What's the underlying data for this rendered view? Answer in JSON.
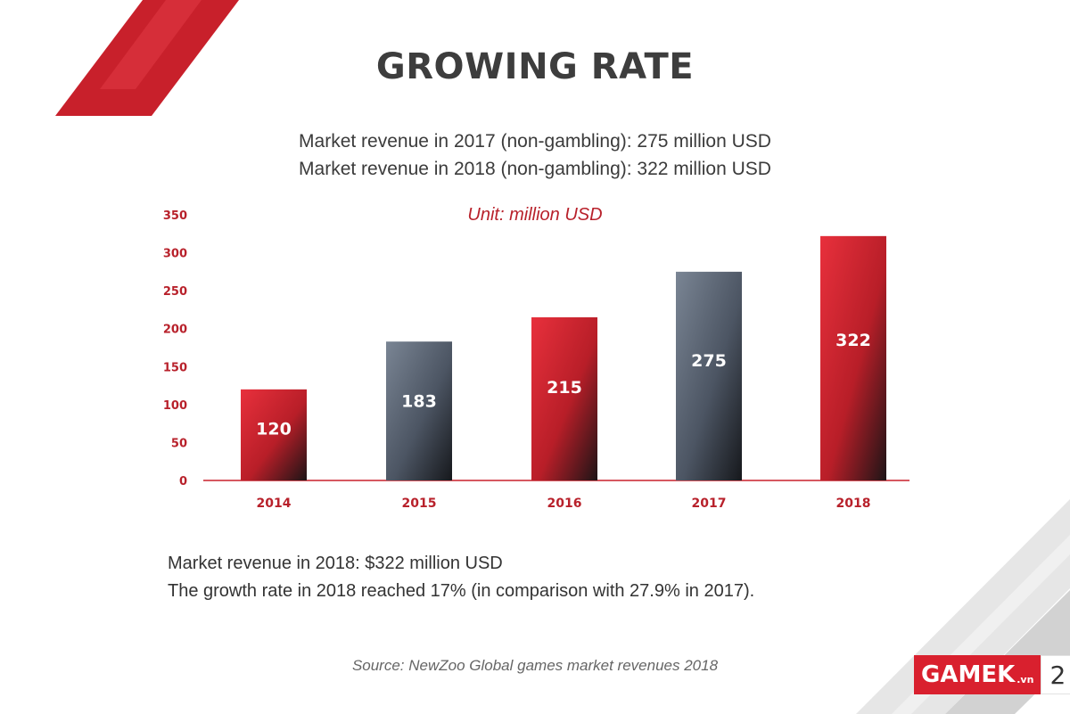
{
  "slide": {
    "title": "GROWING RATE",
    "subtitle_1": "Market revenue in 2017 (non-gambling): 275 million USD",
    "subtitle_2": "Market revenue in 2018 (non-gambling): 322 million USD",
    "note_1": "Market revenue in 2018: $322 million USD",
    "note_2": "The growth rate in 2018 reached 17% (in comparison with 27.9% in 2017).",
    "source": "Source: NewZoo Global games market revenues 2018",
    "logo_text": "GAMEK",
    "logo_suffix": ".vn",
    "page_number": "2"
  },
  "colors": {
    "accent_red": "#d9202e",
    "slate": "#5c6675",
    "axis_text": "#b8212b"
  },
  "chart_data": {
    "type": "bar",
    "title": "",
    "unit_label": "Unit: million USD",
    "categories": [
      "2014",
      "2015",
      "2016",
      "2017",
      "2018"
    ],
    "values": [
      120,
      183,
      215,
      275,
      322
    ],
    "bar_colors": [
      "red",
      "slate",
      "red",
      "slate",
      "red"
    ],
    "data_labels": [
      "120",
      "183",
      "215",
      "275",
      "322"
    ],
    "yticks": [
      0,
      50,
      100,
      150,
      200,
      250,
      300,
      350
    ],
    "ylim": [
      0,
      350
    ],
    "xlabel": "",
    "ylabel": "",
    "grid": false,
    "legend": "none"
  }
}
